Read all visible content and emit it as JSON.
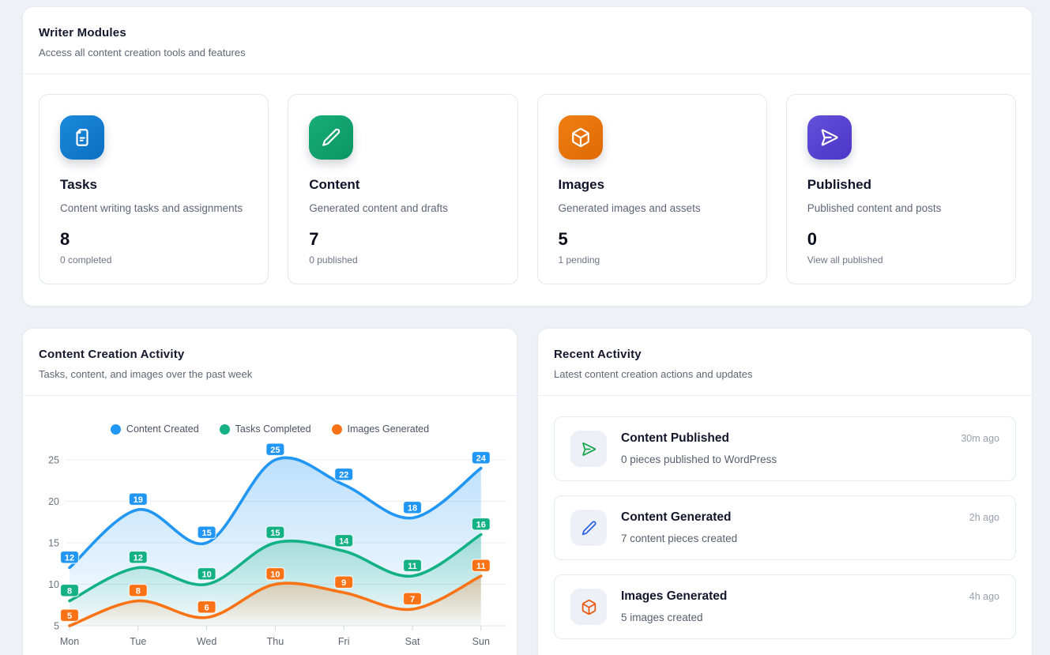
{
  "modules_panel": {
    "title": "Writer Modules",
    "subtitle": "Access all content creation tools and features",
    "cards": [
      {
        "title": "Tasks",
        "description": "Content writing tasks and assignments",
        "value": "8",
        "sub": "0 completed",
        "icon": "document-icon",
        "color": "#1b8ada",
        "color2": "#0b6fc4"
      },
      {
        "title": "Content",
        "description": "Generated content and drafts",
        "value": "7",
        "sub": "0 published",
        "icon": "pencil-icon",
        "color": "#17ad79",
        "color2": "#0b9663"
      },
      {
        "title": "Images",
        "description": "Generated images and assets",
        "value": "5",
        "sub": "1 pending",
        "icon": "cube-icon",
        "color": "#ef7f12",
        "color2": "#de6a03"
      },
      {
        "title": "Published",
        "description": "Published content and posts",
        "value": "0",
        "sub": "View all published",
        "icon": "send-icon",
        "color": "#6450da",
        "color2": "#4b36c6"
      }
    ]
  },
  "activity_chart_panel": {
    "title": "Content Creation Activity",
    "subtitle": "Tasks, content, and images over the past week"
  },
  "chart_data": {
    "type": "line",
    "title": "Content Creation Activity",
    "categories": [
      "Mon",
      "Tue",
      "Wed",
      "Thu",
      "Fri",
      "Sat",
      "Sun"
    ],
    "series": [
      {
        "name": "Content Created",
        "color": "#2196f3",
        "values": [
          12,
          19,
          15,
          25,
          22,
          18,
          24
        ]
      },
      {
        "name": "Tasks Completed",
        "color": "#14b184",
        "values": [
          8,
          12,
          10,
          15,
          14,
          11,
          16
        ]
      },
      {
        "name": "Images Generated",
        "color": "#f97316",
        "values": [
          5,
          8,
          6,
          10,
          9,
          7,
          11
        ]
      }
    ],
    "xlabel": "",
    "ylabel": "",
    "ylim": [
      5,
      25
    ],
    "yticks": [
      5,
      10,
      15,
      20,
      25
    ],
    "grid": true,
    "legend_position": "top",
    "smooth": true,
    "area_fill": true,
    "data_labels": true
  },
  "recent_activity_panel": {
    "title": "Recent Activity",
    "subtitle": "Latest content creation actions and updates",
    "items": [
      {
        "title": "Content Published",
        "description": "0 pieces published to WordPress",
        "time": "30m ago",
        "icon": "send-icon",
        "icon_color": "#18a34b"
      },
      {
        "title": "Content Generated",
        "description": "7 content pieces created",
        "time": "2h ago",
        "icon": "pencil-icon",
        "icon_color": "#2e63e7"
      },
      {
        "title": "Images Generated",
        "description": "5 images created",
        "time": "4h ago",
        "icon": "cube-icon",
        "icon_color": "#ea580c"
      }
    ]
  }
}
